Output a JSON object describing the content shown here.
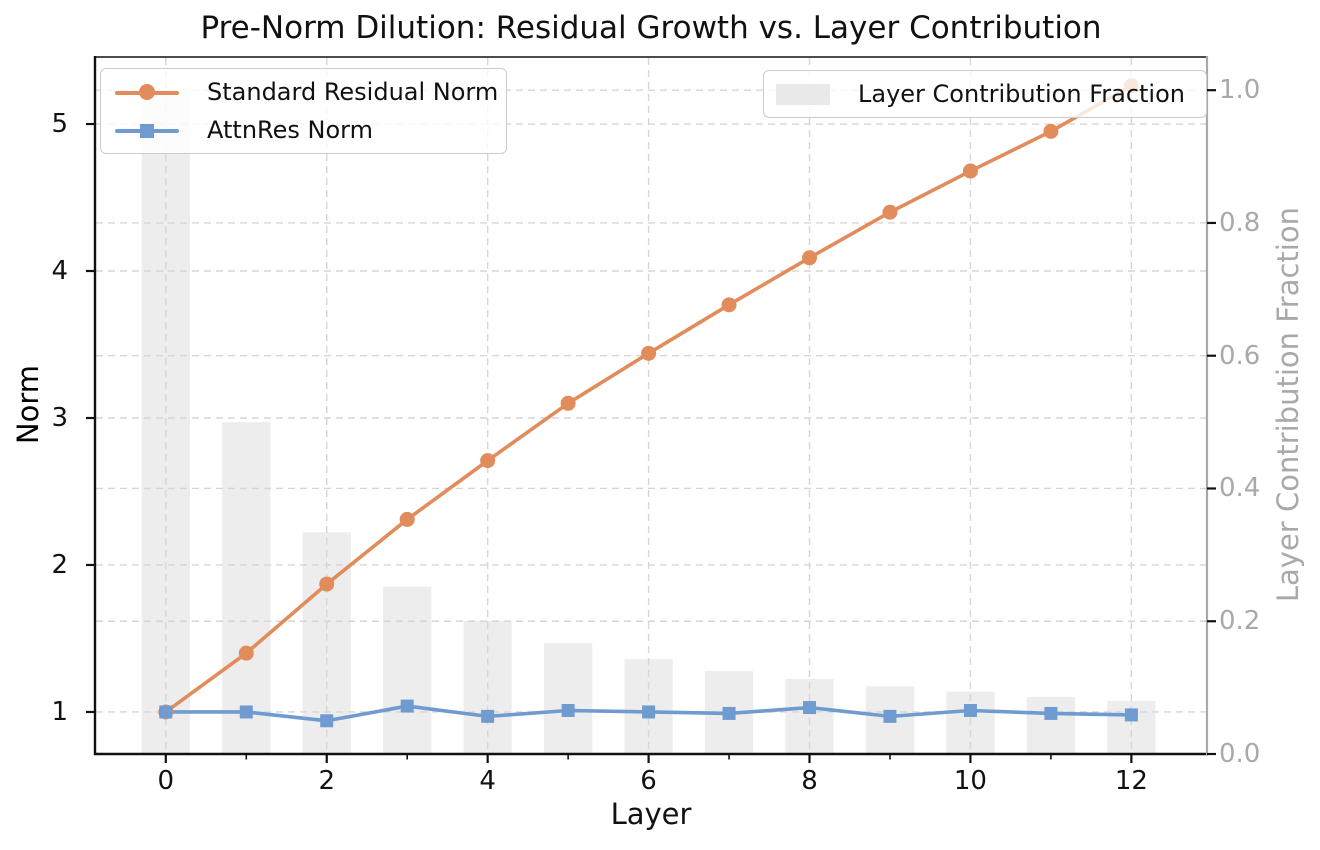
{
  "title": "Pre-Norm Dilution: Residual Growth vs. Layer Contribution",
  "chart_data": {
    "type": "line+bar combo, twin y axes",
    "x": [
      0,
      1,
      2,
      3,
      4,
      5,
      6,
      7,
      8,
      9,
      10,
      11,
      12
    ],
    "series": [
      {
        "name": "Standard Residual Norm",
        "type": "line",
        "marker": "circle",
        "axis": "left",
        "color": "#e28b5b",
        "values": [
          1.0,
          1.4,
          1.87,
          2.31,
          2.71,
          3.1,
          3.44,
          3.77,
          4.09,
          4.4,
          4.68,
          4.95,
          5.26
        ]
      },
      {
        "name": "AttnRes Norm",
        "type": "line",
        "marker": "square",
        "axis": "left",
        "color": "#6f9bd1",
        "values": [
          1.0,
          1.0,
          0.94,
          1.04,
          0.97,
          1.01,
          1.0,
          0.99,
          1.03,
          0.97,
          1.01,
          0.99,
          0.98
        ]
      },
      {
        "name": "Layer Contribution Fraction",
        "type": "bar",
        "axis": "right",
        "color": "#e9e9e9",
        "values": [
          1.0,
          0.5,
          0.334,
          0.252,
          0.201,
          0.167,
          0.143,
          0.125,
          0.113,
          0.102,
          0.094,
          0.086,
          0.08
        ]
      }
    ],
    "xlabel": "Layer",
    "ylabel_left": "Norm",
    "ylabel_right": "Layer Contribution Fraction",
    "xtick_labels": [
      "0",
      "2",
      "4",
      "6",
      "8",
      "10",
      "12"
    ],
    "xticks": [
      0,
      2,
      4,
      6,
      8,
      10,
      12
    ],
    "xticks_minor": [
      1,
      3,
      5,
      7,
      9,
      11
    ],
    "ytick_labels_left": [
      "1",
      "2",
      "3",
      "4",
      "5"
    ],
    "yticks_left": [
      1,
      2,
      3,
      4,
      5
    ],
    "ytick_labels_right": [
      "0.0",
      "0.2",
      "0.4",
      "0.6",
      "0.8",
      "1.0"
    ],
    "yticks_right": [
      0,
      0.2,
      0.4,
      0.6,
      0.8,
      1.0
    ],
    "x_range": [
      -0.88,
      12.94
    ],
    "y_left_range": [
      0.714,
      5.456
    ],
    "y_right_range": [
      0,
      1.05
    ],
    "bar_width_units": 0.6,
    "grid": "dashed, both y-axes majors + x majors",
    "legend_norm_position": "upper left",
    "legend_contribution_position": "upper right"
  },
  "colors": {
    "standard_residual": "#e28b5b",
    "attnres": "#6f9bd1",
    "bar_fill": "#e9e9e9",
    "grid": "#d6d6d6",
    "right_axis_text": "#a9a9a9",
    "spine": "#111111",
    "right_spine": "#a9a9a9",
    "background": "#ffffff"
  }
}
